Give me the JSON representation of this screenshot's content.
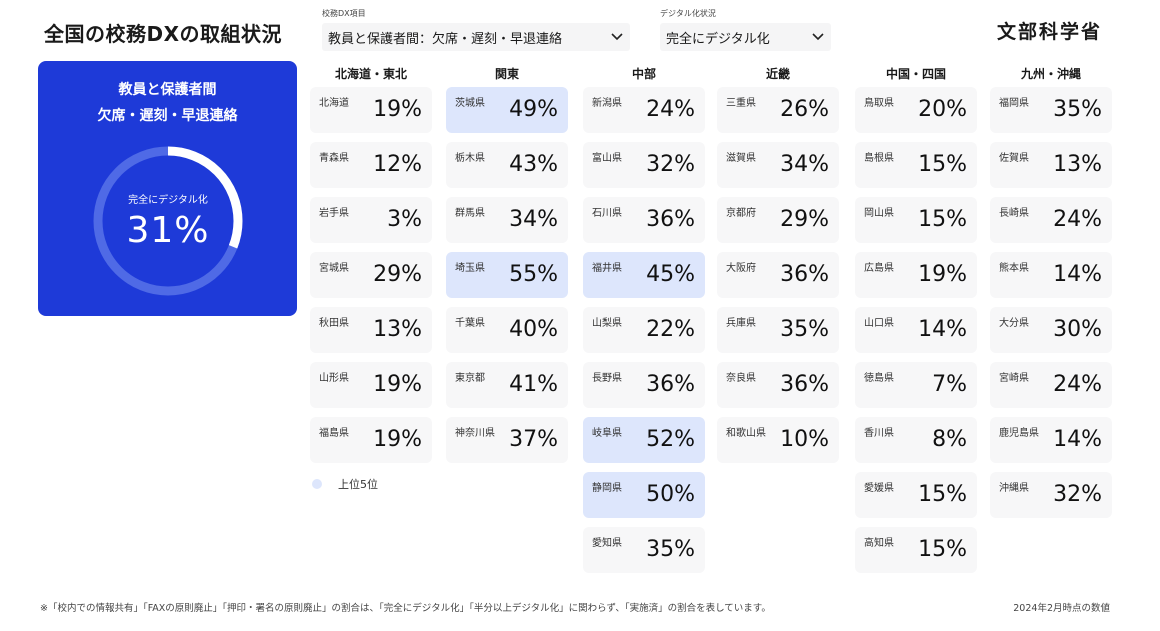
{
  "page": {
    "title": "全国の校務DXの取組状況",
    "logo_text": "文部科学省",
    "footnote": "※「校内での情報共有」「FAXの原則廃止」「押印・署名の原則廃止」の割合は、「完全にデジタル化」「半分以上デジタル化」に関わらず、「実施済」の割合を表しています。",
    "as_of": "2024年2月時点の数値"
  },
  "filters": {
    "item": {
      "label": "校務DX項目",
      "value": "教員と保護者間：欠席・遅刻・早退連絡",
      "icon": "chevron-down-icon"
    },
    "status": {
      "label": "デジタル化状況",
      "value": "完全にデジタル化",
      "icon": "chevron-down-icon"
    }
  },
  "summary": {
    "title_line1": "教員と保護者間",
    "title_line2": "欠席・遅刻・早退連絡",
    "label": "完全にデジタル化",
    "value": "31%",
    "value_fraction": 0.31,
    "colors": {
      "card": "#1e3ad8",
      "ring_fill": "#ffffff",
      "ring_track": "#4f6ae6"
    }
  },
  "legend": {
    "label": "上位5位",
    "color": "#dde6fc"
  },
  "regions": [
    {
      "name": "北海道・東北",
      "prefs": [
        {
          "name": "北海道",
          "value": "19%",
          "top5": false
        },
        {
          "name": "青森県",
          "value": "12%",
          "top5": false
        },
        {
          "name": "岩手県",
          "value": "3%",
          "top5": false
        },
        {
          "name": "宮城県",
          "value": "29%",
          "top5": false
        },
        {
          "name": "秋田県",
          "value": "13%",
          "top5": false
        },
        {
          "name": "山形県",
          "value": "19%",
          "top5": false
        },
        {
          "name": "福島県",
          "value": "19%",
          "top5": false
        }
      ]
    },
    {
      "name": "関東",
      "prefs": [
        {
          "name": "茨城県",
          "value": "49%",
          "top5": true
        },
        {
          "name": "栃木県",
          "value": "43%",
          "top5": false
        },
        {
          "name": "群馬県",
          "value": "34%",
          "top5": false
        },
        {
          "name": "埼玉県",
          "value": "55%",
          "top5": true
        },
        {
          "name": "千葉県",
          "value": "40%",
          "top5": false
        },
        {
          "name": "東京都",
          "value": "41%",
          "top5": false
        },
        {
          "name": "神奈川県",
          "value": "37%",
          "top5": false
        }
      ]
    },
    {
      "name": "中部",
      "prefs": [
        {
          "name": "新潟県",
          "value": "24%",
          "top5": false
        },
        {
          "name": "富山県",
          "value": "32%",
          "top5": false
        },
        {
          "name": "石川県",
          "value": "36%",
          "top5": false
        },
        {
          "name": "福井県",
          "value": "45%",
          "top5": true
        },
        {
          "name": "山梨県",
          "value": "22%",
          "top5": false
        },
        {
          "name": "長野県",
          "value": "36%",
          "top5": false
        },
        {
          "name": "岐阜県",
          "value": "52%",
          "top5": true
        },
        {
          "name": "静岡県",
          "value": "50%",
          "top5": true
        },
        {
          "name": "愛知県",
          "value": "35%",
          "top5": false
        }
      ]
    },
    {
      "name": "近畿",
      "prefs": [
        {
          "name": "三重県",
          "value": "26%",
          "top5": false
        },
        {
          "name": "滋賀県",
          "value": "34%",
          "top5": false
        },
        {
          "name": "京都府",
          "value": "29%",
          "top5": false
        },
        {
          "name": "大阪府",
          "value": "36%",
          "top5": false
        },
        {
          "name": "兵庫県",
          "value": "35%",
          "top5": false
        },
        {
          "name": "奈良県",
          "value": "36%",
          "top5": false
        },
        {
          "name": "和歌山県",
          "value": "10%",
          "top5": false
        }
      ]
    },
    {
      "name": "中国・四国",
      "prefs": [
        {
          "name": "鳥取県",
          "value": "20%",
          "top5": false
        },
        {
          "name": "島根県",
          "value": "15%",
          "top5": false
        },
        {
          "name": "岡山県",
          "value": "15%",
          "top5": false
        },
        {
          "name": "広島県",
          "value": "19%",
          "top5": false
        },
        {
          "name": "山口県",
          "value": "14%",
          "top5": false
        },
        {
          "name": "徳島県",
          "value": "7%",
          "top5": false
        },
        {
          "name": "香川県",
          "value": "8%",
          "top5": false
        },
        {
          "name": "愛媛県",
          "value": "15%",
          "top5": false
        },
        {
          "name": "高知県",
          "value": "15%",
          "top5": false
        }
      ]
    },
    {
      "name": "九州・沖縄",
      "prefs": [
        {
          "name": "福岡県",
          "value": "35%",
          "top5": false
        },
        {
          "name": "佐賀県",
          "value": "13%",
          "top5": false
        },
        {
          "name": "長崎県",
          "value": "24%",
          "top5": false
        },
        {
          "name": "熊本県",
          "value": "14%",
          "top5": false
        },
        {
          "name": "大分県",
          "value": "30%",
          "top5": false
        },
        {
          "name": "宮崎県",
          "value": "24%",
          "top5": false
        },
        {
          "name": "鹿児島県",
          "value": "14%",
          "top5": false
        },
        {
          "name": "沖縄県",
          "value": "32%",
          "top5": false
        }
      ]
    }
  ]
}
